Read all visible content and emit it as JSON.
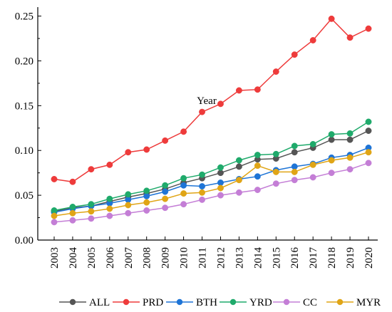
{
  "chart_data": {
    "type": "line",
    "xlabel": "Year",
    "ylabel": "",
    "ylim": [
      0,
      0.26
    ],
    "yticks": [
      "0.00",
      "0.05",
      "0.10",
      "0.15",
      "0.20",
      "0.25"
    ],
    "ytick_values": [
      0,
      0.05,
      0.1,
      0.15,
      0.2,
      0.25
    ],
    "x": [
      "2003",
      "2004",
      "2005",
      "2006",
      "2007",
      "2008",
      "2009",
      "2010",
      "2011",
      "2012",
      "2013",
      "2014",
      "2015",
      "2016",
      "2017",
      "2018",
      "2019",
      "2020"
    ],
    "legend_position": "bottom",
    "grid": false,
    "series": [
      {
        "name": "ALL",
        "color": "#555555",
        "values": [
          0.032,
          0.036,
          0.038,
          0.043,
          0.048,
          0.052,
          0.057,
          0.064,
          0.069,
          0.075,
          0.082,
          0.09,
          0.091,
          0.098,
          0.103,
          0.112,
          0.112,
          0.122
        ]
      },
      {
        "name": "PRD",
        "color": "#ee3b3b",
        "values": [
          0.068,
          0.065,
          0.079,
          0.084,
          0.098,
          0.101,
          0.111,
          0.121,
          0.143,
          0.152,
          0.167,
          0.168,
          0.188,
          0.207,
          0.223,
          0.247,
          0.226,
          0.236
        ]
      },
      {
        "name": "BTH",
        "color": "#1e74d6",
        "values": [
          0.031,
          0.035,
          0.038,
          0.041,
          0.045,
          0.049,
          0.054,
          0.061,
          0.06,
          0.064,
          0.068,
          0.071,
          0.078,
          0.082,
          0.085,
          0.092,
          0.095,
          0.103
        ]
      },
      {
        "name": "YRD",
        "color": "#1faa6b",
        "values": [
          0.033,
          0.037,
          0.04,
          0.046,
          0.051,
          0.055,
          0.061,
          0.069,
          0.073,
          0.081,
          0.089,
          0.095,
          0.096,
          0.105,
          0.107,
          0.118,
          0.119,
          0.132
        ]
      },
      {
        "name": "CC",
        "color": "#c47ed6",
        "values": [
          0.02,
          0.022,
          0.024,
          0.027,
          0.03,
          0.033,
          0.036,
          0.04,
          0.045,
          0.05,
          0.053,
          0.056,
          0.063,
          0.067,
          0.07,
          0.075,
          0.079,
          0.086
        ]
      },
      {
        "name": "MYR",
        "color": "#e0a516",
        "values": [
          0.027,
          0.03,
          0.032,
          0.035,
          0.039,
          0.042,
          0.046,
          0.052,
          0.053,
          0.058,
          0.067,
          0.083,
          0.076,
          0.076,
          0.084,
          0.089,
          0.092,
          0.098
        ]
      }
    ]
  }
}
